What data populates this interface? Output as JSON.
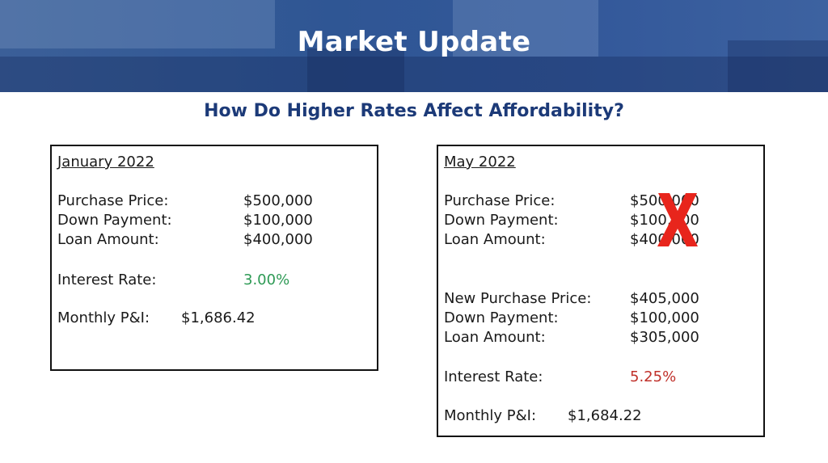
{
  "header": {
    "title": "Market Update",
    "subtitle": "How Do Higher Rates Affect Affordability?"
  },
  "january": {
    "heading": "January 2022",
    "purchase_price_label": "Purchase Price:",
    "purchase_price_value": "$500,000",
    "down_payment_label": "Down Payment:",
    "down_payment_value": "$100,000",
    "loan_amount_label": "Loan Amount:",
    "loan_amount_value": "$400,000",
    "interest_rate_label": "Interest Rate:",
    "interest_rate_value": "3.00%",
    "monthly_label": "Monthly P&I:",
    "monthly_value": "$1,686.42"
  },
  "may": {
    "heading": "May 2022",
    "purchase_price_label": "Purchase Price:",
    "purchase_price_value": "$500,000",
    "down_payment_label": "Down Payment:",
    "down_payment_value": "$100,000",
    "loan_amount_label": "Loan Amount:",
    "loan_amount_value": "$400,000",
    "new_purchase_price_label": "New Purchase Price:",
    "new_purchase_price_value": "$405,000",
    "new_down_payment_label": "Down Payment:",
    "new_down_payment_value": "$100,000",
    "new_loan_amount_label": "Loan Amount:",
    "new_loan_amount_value": "$305,000",
    "interest_rate_label": "Interest Rate:",
    "interest_rate_value": "5.25%",
    "monthly_label": "Monthly P&I:",
    "monthly_value": "$1,684.22"
  },
  "colors": {
    "banner": "#2f5694",
    "subtitle": "#1c3a78",
    "rate_low": "#2e9a55",
    "rate_high": "#c0302a",
    "cross_mark": "#e8251c"
  },
  "icons": {
    "cross_mark": "x-mark-icon"
  }
}
